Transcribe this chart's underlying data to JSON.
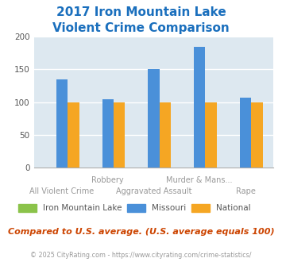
{
  "title_line1": "2017 Iron Mountain Lake",
  "title_line2": "Violent Crime Comparison",
  "iron_mountain_lake": [
    0,
    0,
    0,
    0,
    0
  ],
  "missouri": [
    135,
    105,
    150,
    185,
    107
  ],
  "national": [
    100,
    100,
    100,
    100,
    100
  ],
  "colors": {
    "iron_mountain_lake": "#8bc34a",
    "missouri": "#4a90d9",
    "national": "#f5a623"
  },
  "ylim": [
    0,
    200
  ],
  "yticks": [
    0,
    50,
    100,
    150,
    200
  ],
  "bg_color": "#dde8f0",
  "grid_color": "#ffffff",
  "title_color": "#1a6fbd",
  "xlabel_color": "#999999",
  "footer_text": "Compared to U.S. average. (U.S. average equals 100)",
  "copyright_text": "© 2025 CityRating.com - https://www.cityrating.com/crime-statistics/",
  "footer_color": "#cc4400",
  "copyright_color": "#999999",
  "legend_color": "#555555"
}
